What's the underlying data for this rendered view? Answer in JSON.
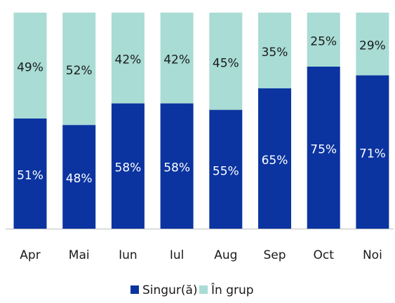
{
  "chart_data": {
    "type": "stacked_bar",
    "categories": [
      "Apr",
      "Mai",
      "Iun",
      "Iul",
      "Aug",
      "Sep",
      "Oct",
      "Noi"
    ],
    "series": [
      {
        "name": "Singur(ă)",
        "color": "#0b34a0",
        "values": [
          51,
          48,
          58,
          58,
          55,
          65,
          75,
          71
        ],
        "value_labels": [
          "51%",
          "48%",
          "58%",
          "58%",
          "55%",
          "65%",
          "75%",
          "71%"
        ]
      },
      {
        "name": "În grup",
        "color": "#a8dcd5",
        "values": [
          49,
          52,
          42,
          42,
          45,
          35,
          25,
          29
        ],
        "value_labels": [
          "49%",
          "52%",
          "42%",
          "42%",
          "45%",
          "35%",
          "25%",
          "29%"
        ]
      }
    ],
    "ylim": [
      0,
      100
    ],
    "legend": "bottom"
  }
}
